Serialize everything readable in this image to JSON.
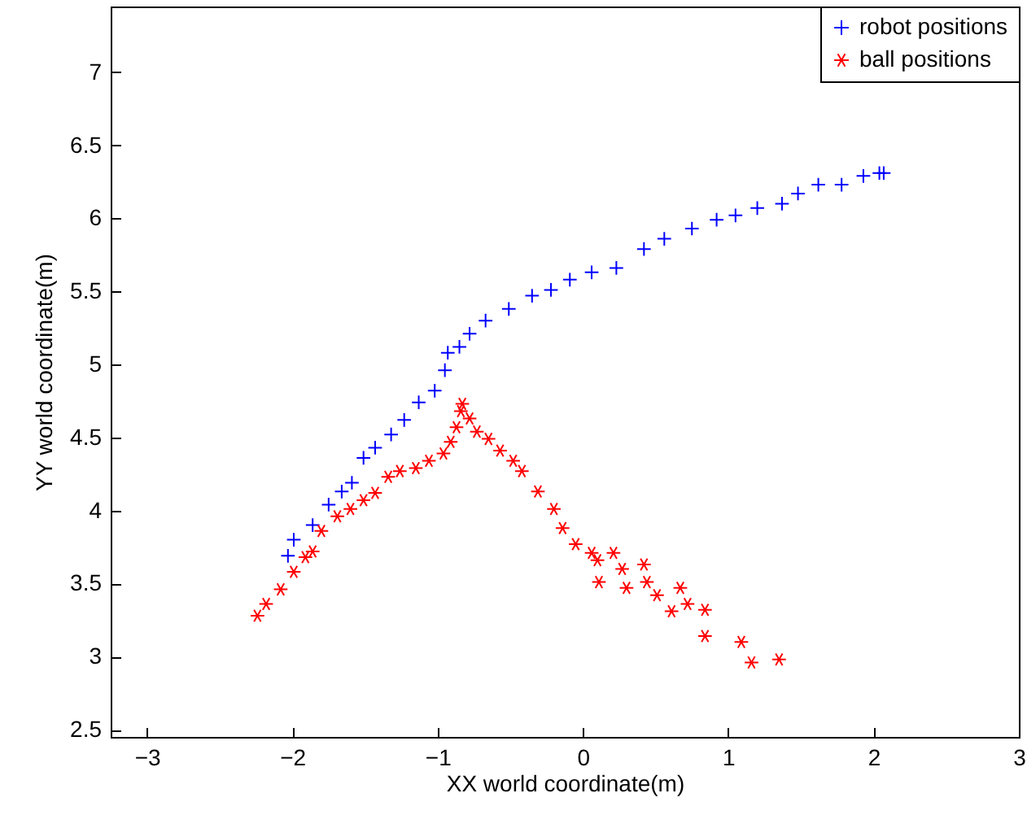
{
  "chart_data": {
    "type": "scatter",
    "xlabel": "XX world coordinate(m)",
    "ylabel": "YY world coordinate(m)",
    "xlim": [
      -3.25,
      3
    ],
    "xticks": [
      -3,
      -2,
      -1,
      0,
      1,
      2,
      3
    ],
    "ylim": [
      2.45,
      7.45
    ],
    "yticks": [
      2.5,
      3,
      3.5,
      4,
      4.5,
      5,
      5.5,
      6,
      6.5,
      7
    ],
    "grid": false,
    "legend": "top right",
    "series": [
      {
        "name": "robot positions",
        "color": "#0000ff",
        "marker": "cross",
        "x": [
          -2.03,
          -1.99,
          -1.86,
          -1.75,
          -1.66,
          -1.59,
          -1.51,
          -1.43,
          -1.32,
          -1.23,
          -1.13,
          -1.02,
          -0.95,
          -0.93,
          -0.85,
          -0.78,
          -0.67,
          -0.51,
          -0.35,
          -0.22,
          -0.09,
          0.06,
          0.23,
          0.42,
          0.56,
          0.75,
          0.92,
          1.05,
          1.2,
          1.37,
          1.48,
          1.62,
          1.78,
          1.93,
          2.04,
          2.07
        ],
        "values": [
          3.69,
          3.8,
          3.9,
          4.04,
          4.13,
          4.19,
          4.36,
          4.43,
          4.52,
          4.62,
          4.74,
          4.82,
          4.96,
          5.08,
          5.12,
          5.21,
          5.3,
          5.38,
          5.47,
          5.51,
          5.58,
          5.63,
          5.66,
          5.79,
          5.86,
          5.93,
          5.99,
          6.02,
          6.07,
          6.1,
          6.17,
          6.23,
          6.23,
          6.29,
          6.31,
          6.31
        ]
      },
      {
        "name": "ball positions",
        "color": "#ff0000",
        "x": [
          -2.24,
          -2.18,
          -2.08,
          -1.99,
          -1.91,
          -1.86,
          -1.8,
          -1.69,
          -1.6,
          -1.51,
          -1.43,
          -1.34,
          -1.26,
          -1.15,
          -1.06,
          -0.96,
          -0.91,
          -0.87,
          -0.84,
          -0.83,
          -0.78,
          -0.73,
          -0.65,
          -0.57,
          -0.48,
          -0.42,
          -0.31,
          -0.2,
          -0.14,
          -0.05,
          0.06,
          0.1,
          0.11,
          0.21,
          0.27,
          0.3,
          0.42,
          0.44,
          0.51,
          0.61,
          0.67,
          0.72,
          0.84,
          0.84,
          1.09,
          1.16,
          1.35
        ],
        "values": [
          3.28,
          3.36,
          3.46,
          3.58,
          3.68,
          3.72,
          3.86,
          3.96,
          4.01,
          4.07,
          4.12,
          4.23,
          4.27,
          4.29,
          4.34,
          4.39,
          4.47,
          4.57,
          4.68,
          4.73,
          4.63,
          4.54,
          4.49,
          4.41,
          4.34,
          4.27,
          4.13,
          4.01,
          3.88,
          3.77,
          3.71,
          3.66,
          3.51,
          3.71,
          3.6,
          3.47,
          3.63,
          3.51,
          3.42,
          3.31,
          3.47,
          3.36,
          3.32,
          3.14,
          3.1,
          2.96,
          2.98
        ]
      }
    ]
  }
}
